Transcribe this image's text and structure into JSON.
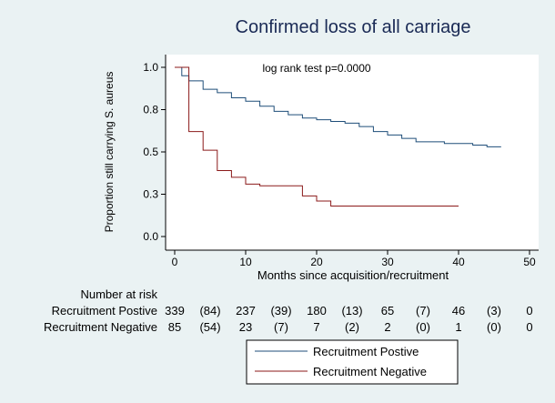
{
  "chart_data": {
    "type": "line",
    "subtype": "kaplan-meier-step",
    "title": "Confirmed loss of all carriage",
    "xlabel": "Months since acquisition/recruitment",
    "ylabel": "Proportion still carrying S. aureus",
    "xlim": [
      0,
      50
    ],
    "ylim": [
      0,
      1
    ],
    "xticks": [
      0,
      10,
      20,
      30,
      40,
      50
    ],
    "yticks": [
      0,
      0.25,
      0.5,
      0.75,
      1.0
    ],
    "ytick_labels": [
      "0.0",
      "0.3",
      "0.5",
      "0.8",
      "1.0"
    ],
    "grid": false,
    "annotation": "log rank test p=0.0000",
    "legend_position": "bottom-center",
    "colors": {
      "background": "#eaf2f3",
      "plot_area": "#ffffff",
      "positive": "#1f4e79",
      "negative": "#8b1a1a",
      "title": "#1a2a55"
    },
    "series": [
      {
        "name": "Recruitment Postive",
        "color": "#1f4e79",
        "x": [
          0,
          1,
          2,
          4,
          6,
          8,
          10,
          12,
          14,
          16,
          18,
          20,
          22,
          24,
          26,
          28,
          30,
          32,
          34,
          36,
          38,
          40,
          42,
          44,
          46
        ],
        "y": [
          1.0,
          0.95,
          0.92,
          0.87,
          0.85,
          0.82,
          0.8,
          0.77,
          0.74,
          0.72,
          0.7,
          0.69,
          0.68,
          0.67,
          0.65,
          0.62,
          0.6,
          0.58,
          0.56,
          0.56,
          0.55,
          0.55,
          0.54,
          0.53,
          0.53
        ]
      },
      {
        "name": "Recruitment Negative",
        "color": "#8b1a1a",
        "x": [
          0,
          2,
          4,
          6,
          8,
          10,
          12,
          18,
          20,
          22,
          24,
          40
        ],
        "y": [
          1.0,
          0.62,
          0.51,
          0.39,
          0.35,
          0.31,
          0.3,
          0.24,
          0.21,
          0.18,
          0.18,
          0.18
        ]
      }
    ]
  },
  "risk_table": {
    "header": "Number at risk",
    "rows": [
      {
        "label": "Recruitment Postive",
        "values": [
          "339",
          "(84)",
          "237",
          "(39)",
          "180",
          "(13)",
          "65",
          "(7)",
          "46",
          "(3)",
          "0"
        ]
      },
      {
        "label": "Recruitment Negative",
        "values": [
          "85",
          "(54)",
          "23",
          "(7)",
          "7",
          "(2)",
          "2",
          "(0)",
          "1",
          "(0)",
          "0"
        ]
      }
    ]
  }
}
